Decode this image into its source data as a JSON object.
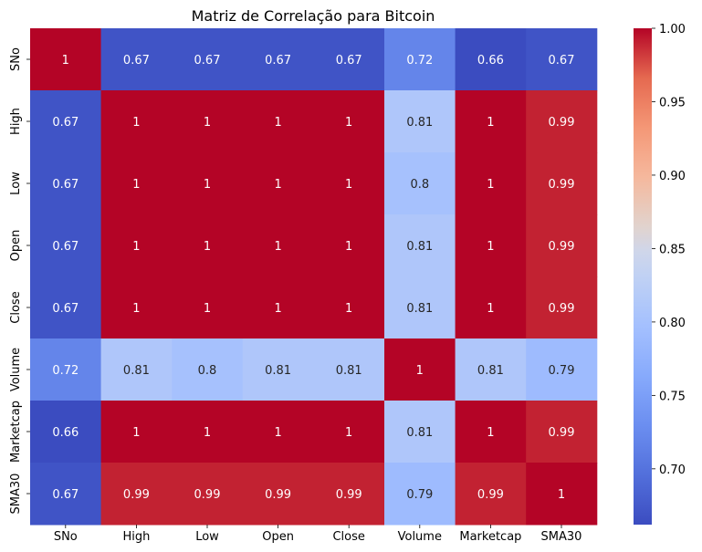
{
  "chart_data": {
    "type": "heatmap",
    "title": "Matriz de Correlação para Bitcoin",
    "xlabel": "",
    "ylabel": "",
    "x_categories": [
      "SNo",
      "High",
      "Low",
      "Open",
      "Close",
      "Volume",
      "Marketcap",
      "SMA30"
    ],
    "y_categories": [
      "SNo",
      "High",
      "Low",
      "Open",
      "Close",
      "Volume",
      "Marketcap",
      "SMA30"
    ],
    "values": [
      [
        1,
        0.67,
        0.67,
        0.67,
        0.67,
        0.72,
        0.66,
        0.67
      ],
      [
        0.67,
        1,
        1,
        1,
        1,
        0.81,
        1,
        0.99
      ],
      [
        0.67,
        1,
        1,
        1,
        1,
        0.8,
        1,
        0.99
      ],
      [
        0.67,
        1,
        1,
        1,
        1,
        0.81,
        1,
        0.99
      ],
      [
        0.67,
        1,
        1,
        1,
        1,
        0.81,
        1,
        0.99
      ],
      [
        0.72,
        0.81,
        0.8,
        0.81,
        0.81,
        1,
        0.81,
        0.79
      ],
      [
        0.66,
        1,
        1,
        1,
        1,
        0.81,
        1,
        0.99
      ],
      [
        0.67,
        0.99,
        0.99,
        0.99,
        0.99,
        0.79,
        0.99,
        1
      ]
    ],
    "colormap": "coolwarm",
    "vmin": 0.662,
    "vmax": 1.0,
    "colorbar_ticks": [
      "0.70",
      "0.75",
      "0.80",
      "0.85",
      "0.90",
      "0.95",
      "1.00"
    ],
    "annotate": true,
    "legend": "colorbar-right"
  }
}
